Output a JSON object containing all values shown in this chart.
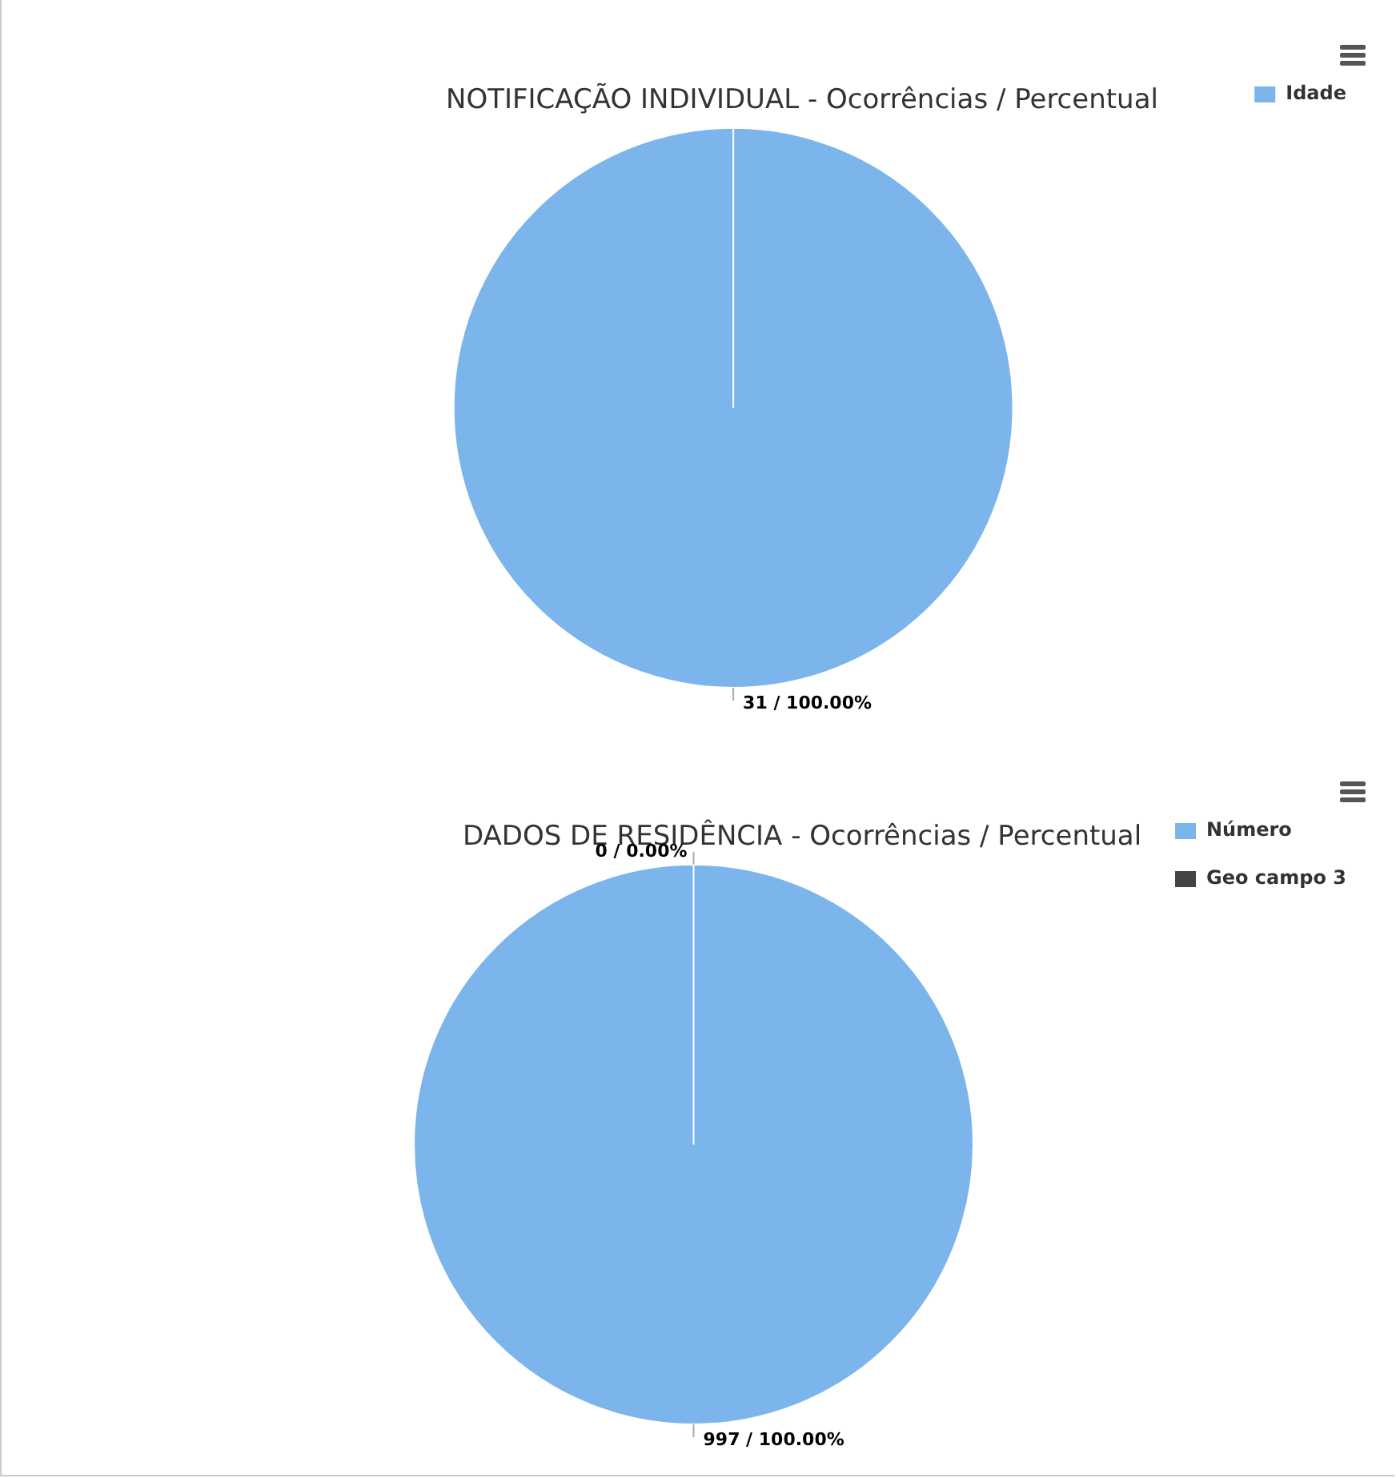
{
  "chart_data": [
    {
      "type": "pie",
      "title": "NOTIFICAÇÃO INDIVIDUAL - Ocorrências / Percentual",
      "categories": [
        "Idade"
      ],
      "values": [
        31
      ],
      "colors": [
        "#7cb5ec"
      ],
      "value_labels": [
        "31 / 100.00%"
      ],
      "legend": "top right"
    },
    {
      "type": "pie",
      "title": "DADOS DE RESIDÊNCIA - Ocorrências / Percentual",
      "categories": [
        "Número",
        "Geo campo 3"
      ],
      "values": [
        997,
        0
      ],
      "colors": [
        "#7cb5ec",
        "#434348"
      ],
      "value_labels": [
        "997 / 100.00%",
        "0 / 0.00%"
      ],
      "legend": "top right"
    }
  ]
}
